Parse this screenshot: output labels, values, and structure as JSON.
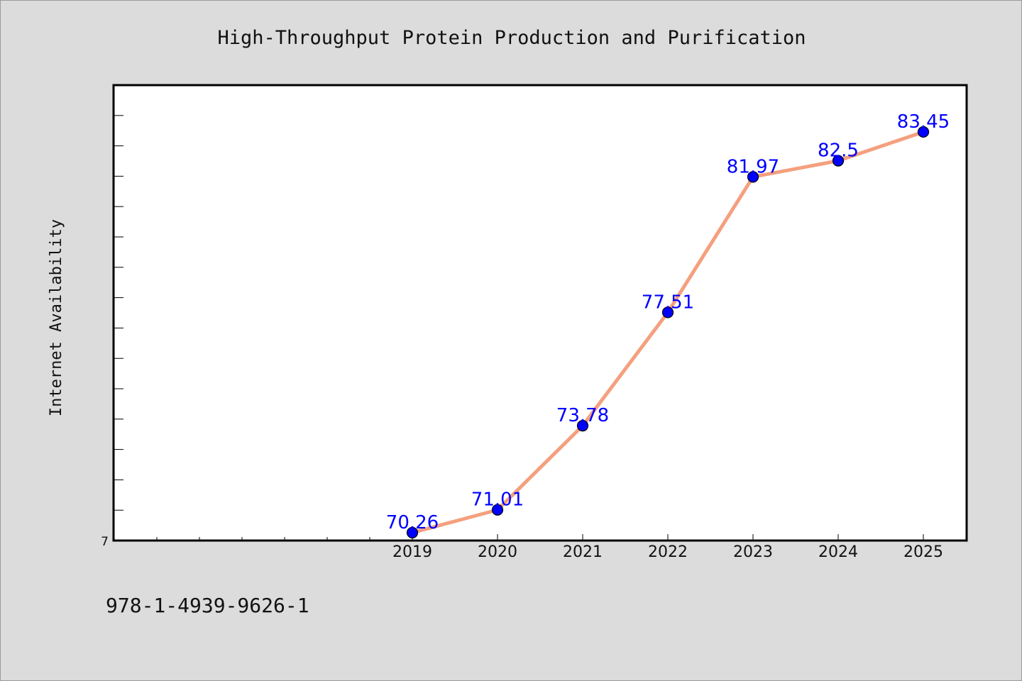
{
  "chart_data": {
    "type": "line",
    "title": "High-Throughput Protein Production and Purification",
    "xlabel": "",
    "ylabel": "Internet Availability",
    "x": [
      "2019",
      "2020",
      "2021",
      "2022",
      "2023",
      "2024",
      "2025"
    ],
    "series": [
      {
        "values": [
          70.26,
          71.01,
          73.78,
          77.51,
          81.97,
          82.5,
          83.45
        ],
        "labels": [
          "70.26",
          "71.01",
          "73.78",
          "77.51",
          "81.97",
          "82.5",
          "83.45"
        ]
      }
    ],
    "ylim": [
      70,
      84.99
    ],
    "y_tick_labels": [
      "7"
    ],
    "grid": false,
    "legend": "none",
    "line_color": "#f4a07e",
    "marker_color": "#0000ff",
    "label_color": "#0000ff"
  },
  "footer": {
    "isbn": "978-1-4939-9626-1"
  }
}
